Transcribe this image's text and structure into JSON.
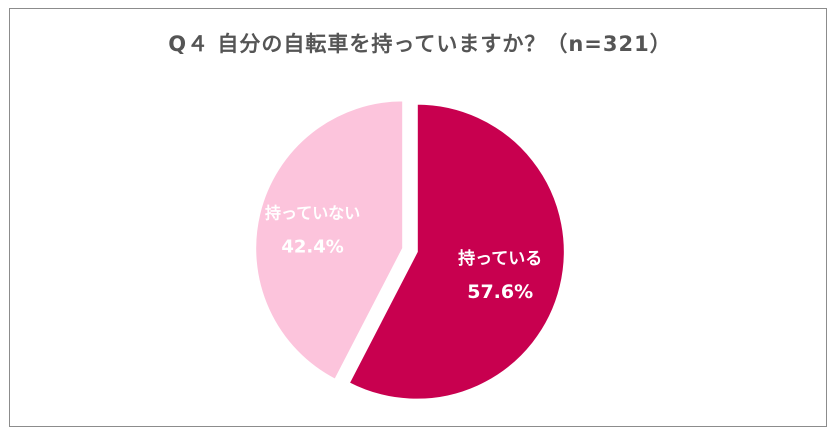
{
  "chart_data": {
    "type": "pie",
    "title": "Q４ 自分の自転車を持っていますか？（n=321）",
    "slices": [
      {
        "label": "持っている",
        "value": 57.6,
        "value_label": "57.6%",
        "color": "#c8004f"
      },
      {
        "label": "持っていない",
        "value": 42.4,
        "value_label": "42.4%",
        "color": "#fcc4dc"
      }
    ],
    "start_angle_deg": 0,
    "direction": "clockwise",
    "legend": "none"
  }
}
